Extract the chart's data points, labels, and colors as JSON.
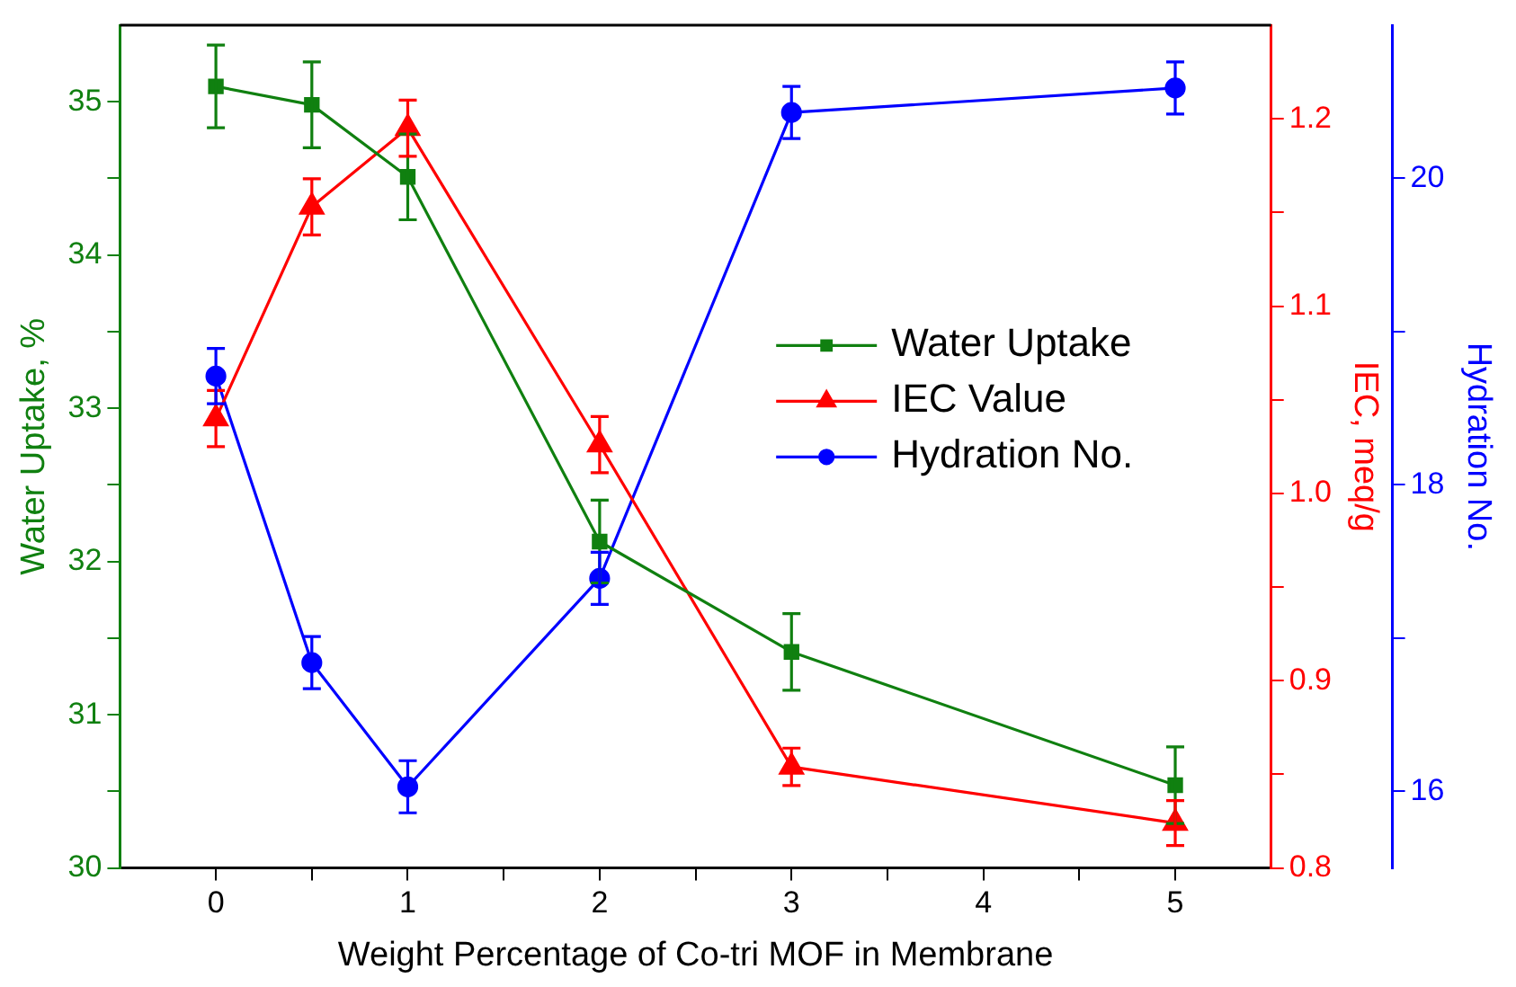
{
  "chart_data": {
    "type": "line",
    "xlabel": "Weight Percentage of Co-tri MOF in Membrane",
    "ylabel": "Water Uptake, %",
    "y2label": "IEC, meq/g",
    "y3label": "Hydration No.",
    "x": [
      0,
      0.5,
      1,
      2,
      3,
      5
    ],
    "xlim": [
      -0.5,
      5.5
    ],
    "xticks": [
      0,
      {
        "value": 0.5,
        "label": null
      },
      1,
      {
        "value": 1.5,
        "label": null
      },
      2,
      {
        "value": 2.5,
        "label": null
      },
      3,
      {
        "value": 3.5,
        "label": null
      },
      4,
      {
        "value": 4.5,
        "label": null
      },
      5
    ],
    "ylim": [
      30,
      35.5
    ],
    "yticks": [
      30,
      {
        "value": 30.5,
        "label": null
      },
      31,
      {
        "value": 31.5,
        "label": null
      },
      32,
      {
        "value": 32.5,
        "label": null
      },
      33,
      {
        "value": 33.5,
        "label": null
      },
      34,
      {
        "value": 34.5,
        "label": null
      },
      35
    ],
    "y2lim": [
      0.8,
      1.25
    ],
    "y2ticks": [
      {
        "value": 0.8,
        "label": "0.8"
      },
      {
        "value": 0.85,
        "label": null
      },
      {
        "value": 0.9,
        "label": "0.9"
      },
      {
        "value": 0.95,
        "label": null
      },
      {
        "value": 1.0,
        "label": "1.0"
      },
      {
        "value": 1.05,
        "label": null
      },
      {
        "value": 1.1,
        "label": "1.1"
      },
      {
        "value": 1.15,
        "label": null
      },
      {
        "value": 1.2,
        "label": "1.2"
      }
    ],
    "y3lim": [
      15.5,
      21
    ],
    "y3ticks": [
      16,
      {
        "value": 17,
        "label": null
      },
      18,
      {
        "value": 19,
        "label": null
      },
      20
    ],
    "legend": "right",
    "grid": false,
    "line_style": "solid",
    "series": [
      {
        "name": "Water Uptake",
        "color": "#108010",
        "marker": "square",
        "values": [
          35.1,
          34.98,
          34.51,
          32.13,
          31.41,
          30.54
        ],
        "errors": [
          0.27,
          0.28,
          0.28,
          0.27,
          0.25,
          0.25
        ]
      },
      {
        "name": "IEC Value",
        "color": "#ff0000",
        "marker": "triangle",
        "axis": "y2",
        "values": [
          1.04,
          1.153,
          1.195,
          1.026,
          0.854,
          0.824
        ],
        "errors": [
          0.015,
          0.015,
          0.015,
          0.015,
          0.01,
          0.012
        ]
      },
      {
        "name": "Hydration No.",
        "color": "#0000ff",
        "marker": "circle",
        "axis": "y3",
        "values": [
          18.71,
          16.84,
          16.03,
          17.39,
          20.43,
          20.59
        ],
        "errors": [
          0.18,
          0.17,
          0.17,
          0.17,
          0.17,
          0.17
        ]
      }
    ]
  }
}
